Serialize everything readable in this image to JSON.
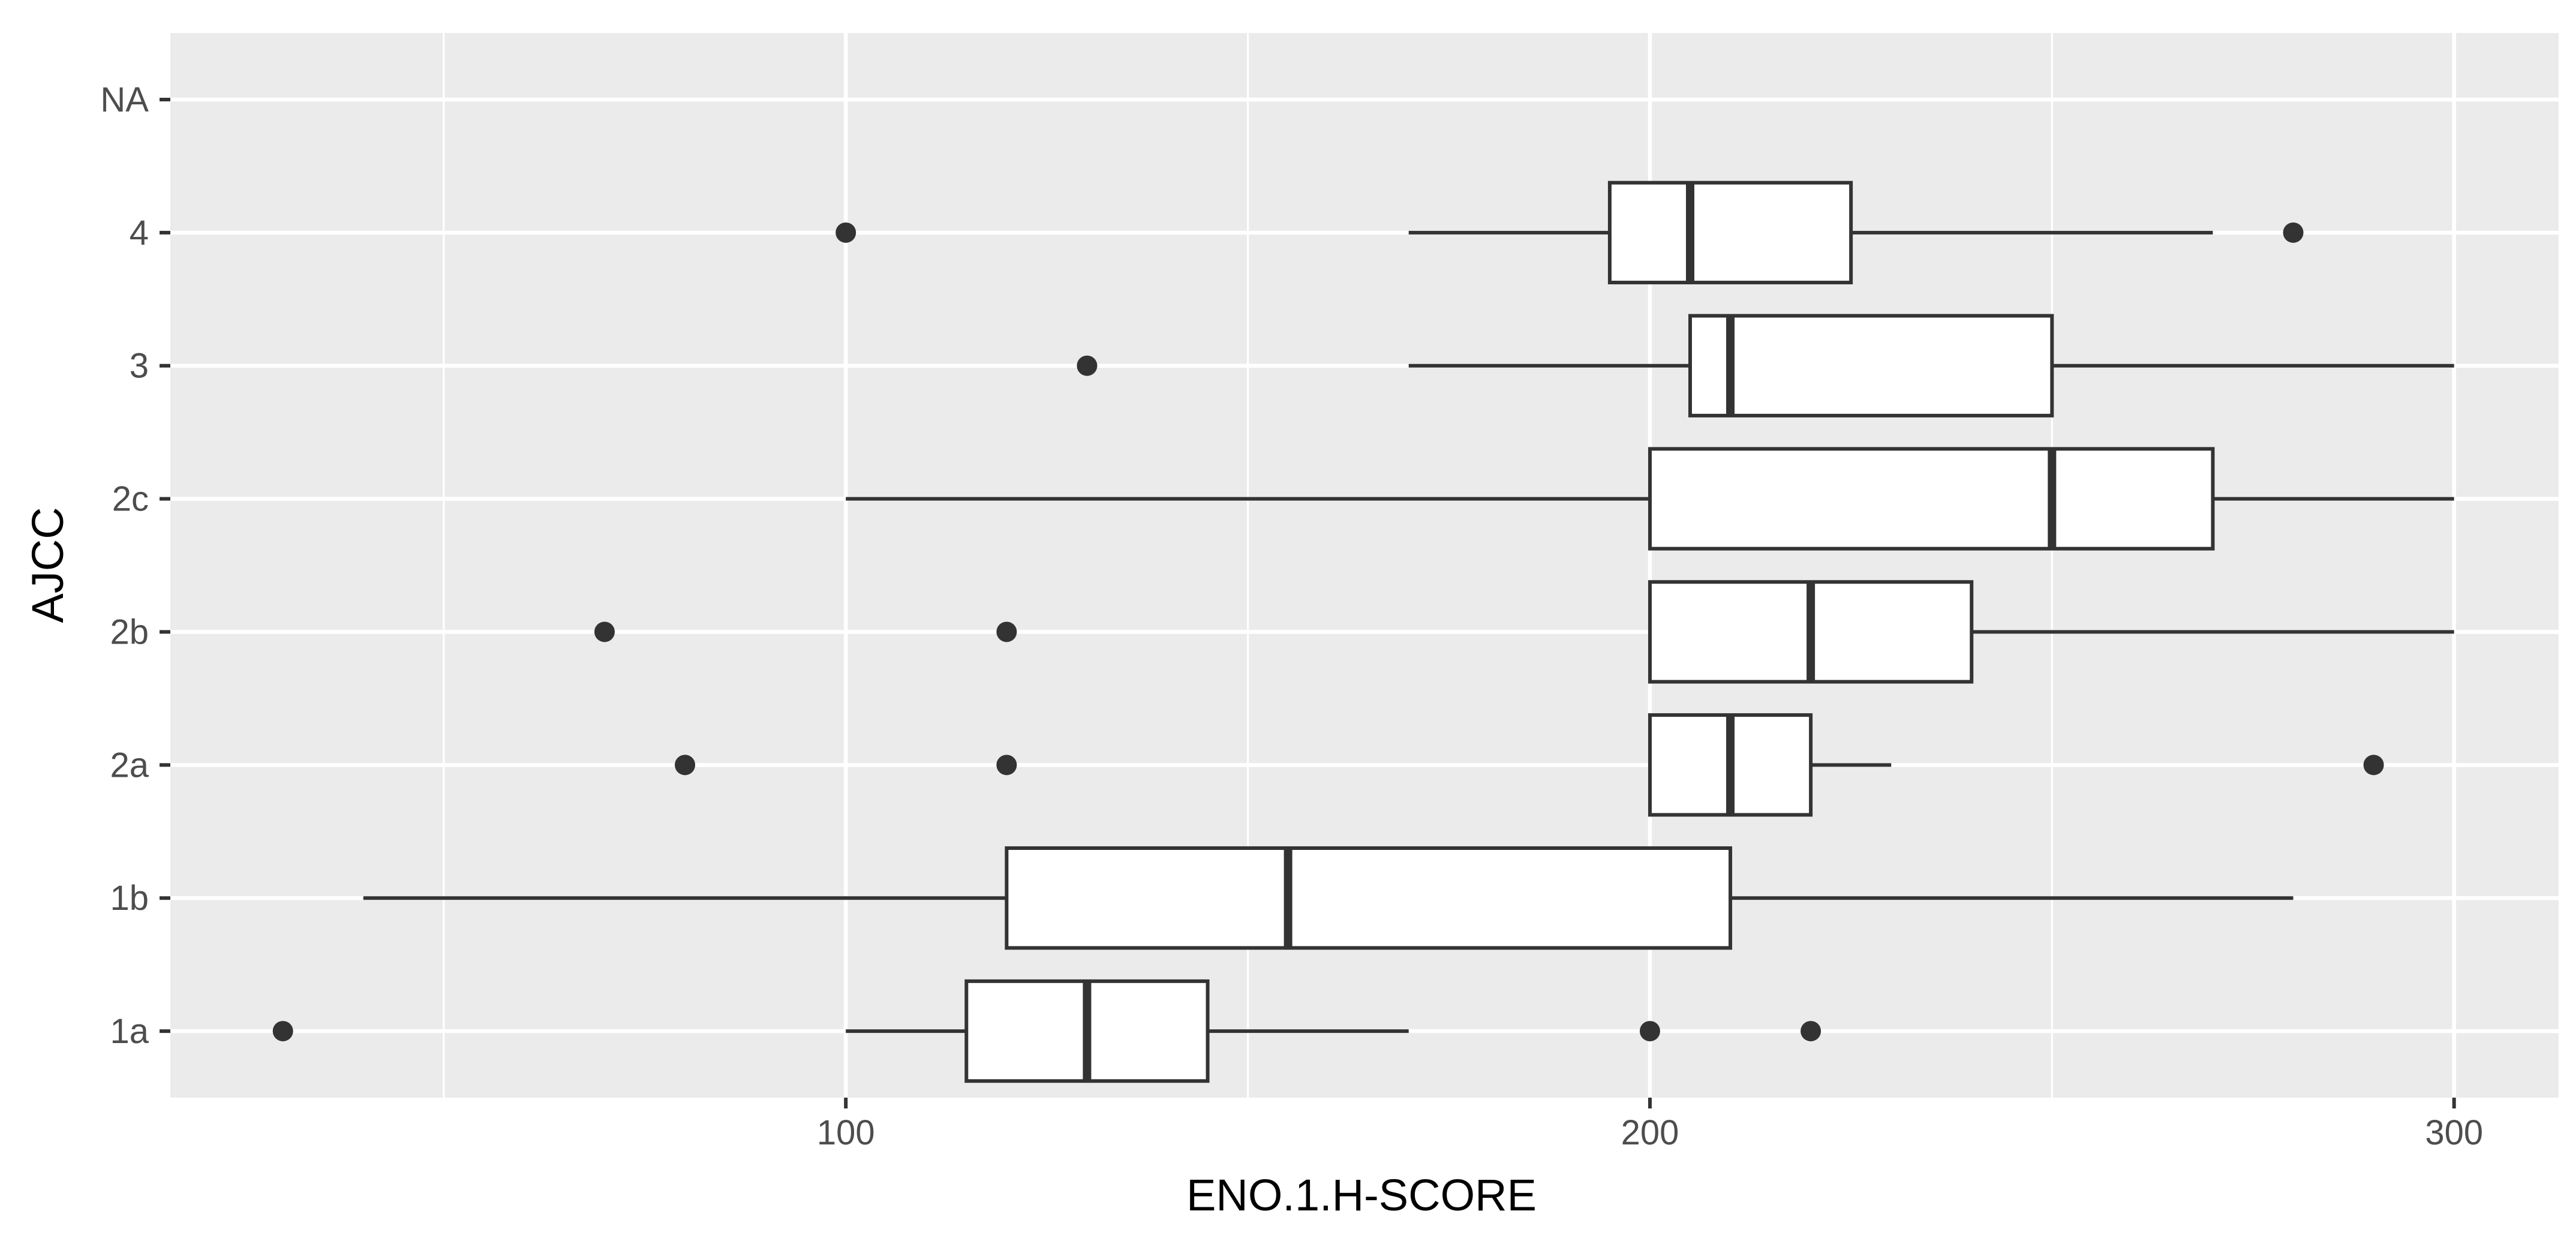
{
  "chart_data": {
    "type": "boxplot",
    "orientation": "horizontal",
    "xlabel": "ENO.1.H-SCORE",
    "ylabel": "AJCC",
    "xlim": [
      16,
      313
    ],
    "x_ticks": [
      100,
      200,
      300
    ],
    "x_minor_ticks": [
      50,
      150,
      250
    ],
    "categories": [
      "1a",
      "1b",
      "2a",
      "2b",
      "2c",
      "3",
      "4",
      "NA"
    ],
    "boxes": [
      {
        "category": "1a",
        "lower_whisker": 100,
        "q1": 115,
        "median": 130,
        "q3": 145,
        "upper_whisker": 170,
        "outliers": [
          30,
          200,
          220
        ]
      },
      {
        "category": "1b",
        "lower_whisker": 40,
        "q1": 120,
        "median": 155,
        "q3": 210,
        "upper_whisker": 280,
        "outliers": []
      },
      {
        "category": "2a",
        "lower_whisker": 200,
        "q1": 200,
        "median": 210,
        "q3": 220,
        "upper_whisker": 230,
        "outliers": [
          80,
          120,
          290
        ]
      },
      {
        "category": "2b",
        "lower_whisker": 200,
        "q1": 200,
        "median": 220,
        "q3": 240,
        "upper_whisker": 300,
        "outliers": [
          70,
          120
        ]
      },
      {
        "category": "2c",
        "lower_whisker": 100,
        "q1": 200,
        "median": 250,
        "q3": 270,
        "upper_whisker": 300,
        "outliers": []
      },
      {
        "category": "3",
        "lower_whisker": 170,
        "q1": 205,
        "median": 210,
        "q3": 250,
        "upper_whisker": 300,
        "outliers": [
          130
        ]
      },
      {
        "category": "4",
        "lower_whisker": 170,
        "q1": 195,
        "median": 205,
        "q3": 225,
        "upper_whisker": 270,
        "outliers": [
          100,
          280
        ]
      },
      {
        "category": "NA",
        "lower_whisker": null,
        "q1": null,
        "median": null,
        "q3": null,
        "upper_whisker": null,
        "outliers": []
      }
    ],
    "grid": true,
    "legend": "none",
    "colors": {
      "panel": "#ebebeb",
      "grid": "#ffffff",
      "box_fill": "#ffffff",
      "line": "#333333"
    }
  }
}
